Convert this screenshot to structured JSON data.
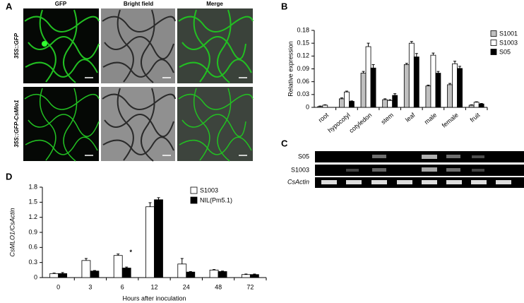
{
  "panel_labels": [
    "A",
    "B",
    "C",
    "D"
  ],
  "microscopy": {
    "columns": [
      "GFP",
      "Bright field",
      "Merge"
    ],
    "rows": [
      "35S::GFP",
      "35S::GFP-CsMlo1"
    ]
  },
  "gel": {
    "rows": [
      "S05",
      "S1003",
      "CsActin"
    ]
  },
  "chart_data": [
    {
      "type": "bar",
      "ylabel": "Relative expression",
      "categories": [
        "root",
        "hypocotyl",
        "cotyledon",
        "stem",
        "leaf",
        "male",
        "female",
        "fruit"
      ],
      "series": [
        {
          "name": "S1001",
          "color": "#c0c0c0",
          "values": [
            0.002,
            0.02,
            0.08,
            0.018,
            0.1,
            0.05,
            0.053,
            0.005
          ],
          "errors": [
            0.001,
            0.002,
            0.004,
            0.002,
            0.003,
            0.002,
            0.003,
            0.001
          ]
        },
        {
          "name": "S1003",
          "color": "#ffffff",
          "values": [
            0.005,
            0.036,
            0.142,
            0.016,
            0.15,
            0.122,
            0.102,
            0.012
          ],
          "errors": [
            0.001,
            0.002,
            0.008,
            0.002,
            0.004,
            0.005,
            0.006,
            0.001
          ]
        },
        {
          "name": "S05",
          "color": "#000000",
          "values": [
            0.0,
            0.014,
            0.092,
            0.028,
            0.118,
            0.08,
            0.091,
            0.008
          ],
          "errors": [
            0.0,
            0.001,
            0.008,
            0.004,
            0.008,
            0.004,
            0.005,
            0.001
          ]
        }
      ],
      "ylim": [
        0,
        0.18
      ],
      "yticks": [
        0,
        0.03,
        0.06,
        0.09,
        0.12,
        0.15,
        0.18
      ],
      "legend": "upper right"
    },
    {
      "type": "bar",
      "xlabel": "Hours after inoculation",
      "ylabel": "CsMLO1/CsActin",
      "categories": [
        "0",
        "3",
        "6",
        "12",
        "24",
        "48",
        "72"
      ],
      "series": [
        {
          "name": "S1003",
          "color": "#ffffff",
          "values": [
            0.08,
            0.34,
            0.44,
            1.41,
            0.27,
            0.15,
            0.06
          ],
          "errors": [
            0.01,
            0.04,
            0.03,
            0.08,
            0.11,
            0.01,
            0.01
          ]
        },
        {
          "name": "NIL(Pm5.1)",
          "color": "#000000",
          "values": [
            0.08,
            0.13,
            0.19,
            1.55,
            0.11,
            0.12,
            0.06
          ],
          "errors": [
            0.02,
            0.01,
            0.02,
            0.04,
            0.01,
            0.01,
            0.01
          ]
        }
      ],
      "annotations": [
        {
          "text": "*",
          "x": "6"
        }
      ],
      "ylim": [
        0,
        1.8
      ],
      "yticks": [
        0,
        0.3,
        0.6,
        0.9,
        1.2,
        1.5,
        1.8
      ],
      "legend": "upper right"
    }
  ]
}
